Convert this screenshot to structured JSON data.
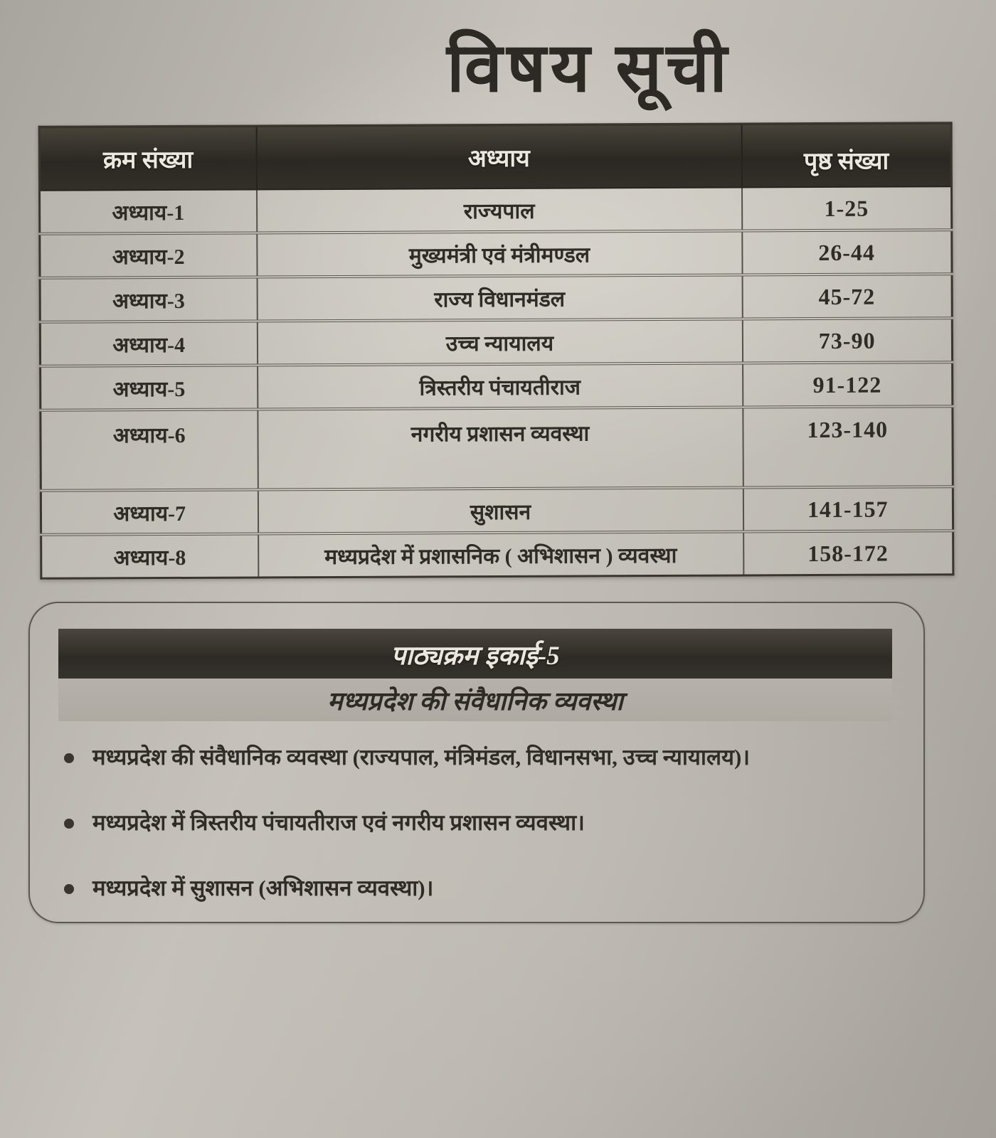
{
  "title": "विषय सूची",
  "table": {
    "headers": [
      "क्रम संख्या",
      "अध्याय",
      "पृष्ठ संख्या"
    ],
    "rows": [
      {
        "serial": "अध्याय-1",
        "chapter": "राज्यपाल",
        "pages": "1-25"
      },
      {
        "serial": "अध्याय-2",
        "chapter": "मुख्यमंत्री एवं मंत्रीमण्डल",
        "pages": "26-44"
      },
      {
        "serial": "अध्याय-3",
        "chapter": "राज्य विधानमंडल",
        "pages": "45-72"
      },
      {
        "serial": "अध्याय-4",
        "chapter": "उच्च न्यायालय",
        "pages": "73-90"
      },
      {
        "serial": "अध्याय-5",
        "chapter": "त्रिस्तरीय पंचायतीराज",
        "pages": "91-122"
      },
      {
        "serial": "अध्याय-6",
        "chapter": "नगरीय प्रशासन व्यवस्था",
        "pages": "123-140"
      },
      {
        "serial": "अध्याय-7",
        "chapter": "सुशासन",
        "pages": "141-157"
      },
      {
        "serial": "अध्याय-8",
        "chapter": "मध्यप्रदेश में प्रशासनिक ( अभिशासन ) व्यवस्था",
        "pages": "158-172"
      }
    ]
  },
  "syllabus": {
    "unit_title": "पाठ्यक्रम इकाई-5",
    "unit_subtitle": "मध्यप्रदेश की संवैधानिक व्यवस्था",
    "points": [
      "मध्यप्रदेश की संवैधानिक व्यवस्था (राज्यपाल, मंत्रिमंडल, विधानसभा, उच्च न्यायालय)।",
      "मध्यप्रदेश में त्रिस्तरीय पंचायतीराज एवं नगरीय प्रशासन व्यवस्था।",
      "मध्यप्रदेश में सुशासन (अभिशासन व्यवस्था)।"
    ]
  },
  "colors": {
    "paper": "#bfbbb4",
    "table_header_bg": "#322f2a",
    "table_header_text": "#ece8e0",
    "unit_bar_bg": "#38352f",
    "unit_band_bg": "#b2aea7",
    "ink": "#2f2b26"
  }
}
